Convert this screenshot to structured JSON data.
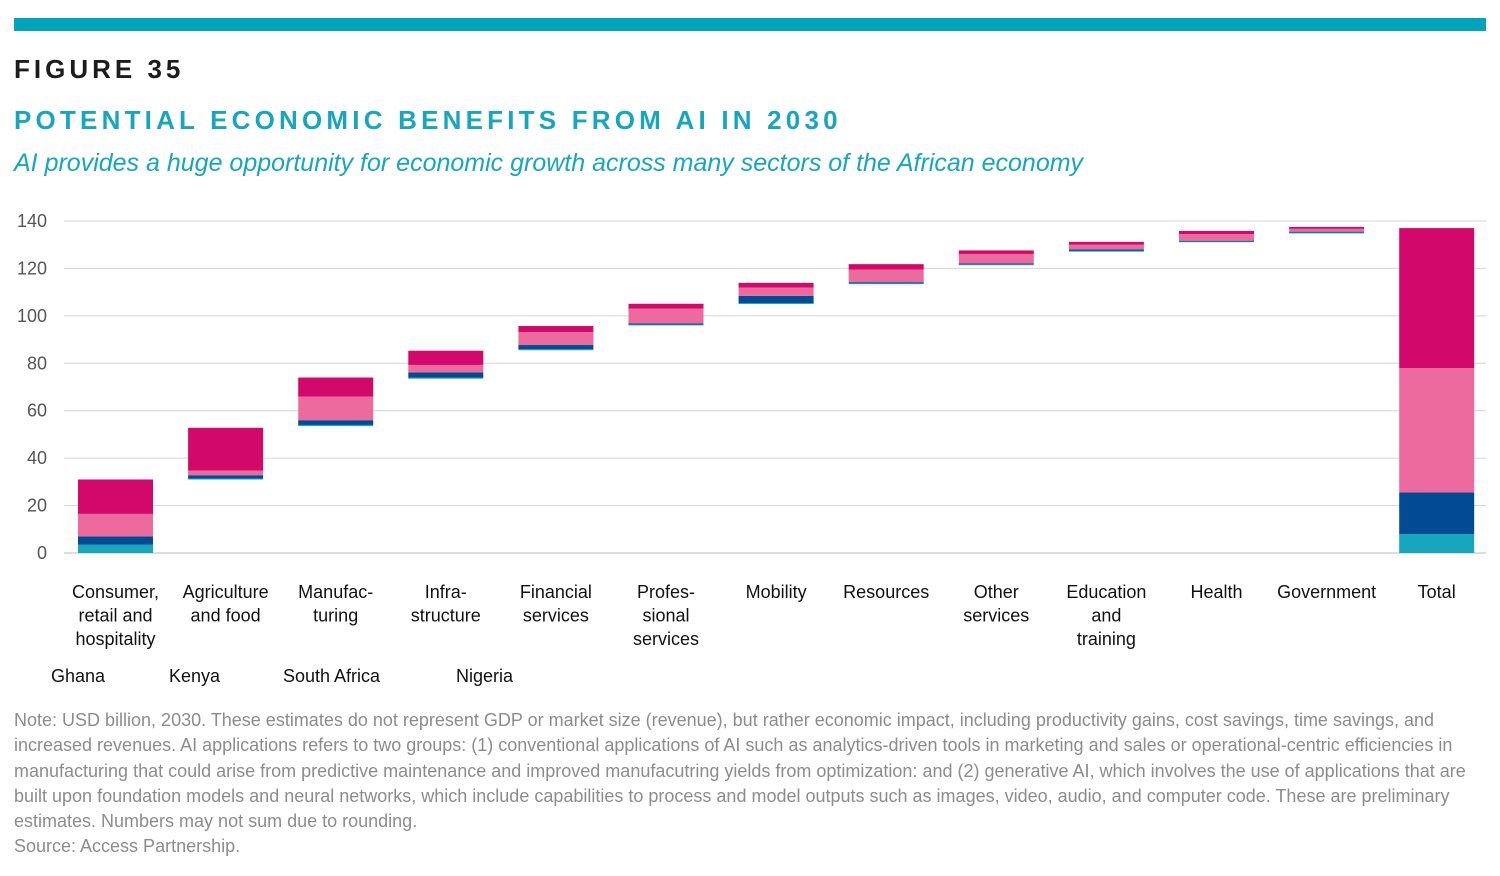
{
  "header": {
    "figure_label": "FIGURE 35",
    "title": "POTENTIAL ECONOMIC BENEFITS FROM AI IN 2030",
    "subtitle": "AI provides a huge opportunity for economic growth across many sectors of the African economy"
  },
  "chart_data": {
    "type": "bar",
    "subtype": "stacked-waterfall",
    "categories": [
      "Consumer, retail and hospitality",
      "Agriculture and food",
      "Manufac-turing",
      "Infra-structure",
      "Financial services",
      "Profes-sional services",
      "Mobility",
      "Resources",
      "Other services",
      "Education and training",
      "Health",
      "Government",
      "Total"
    ],
    "category_label_lines": [
      [
        "Consumer,",
        "retail and",
        "hospitality"
      ],
      [
        "Agriculture",
        "and food"
      ],
      [
        "Manufac-",
        "turing"
      ],
      [
        "Infra-",
        "structure"
      ],
      [
        "Financial",
        "services"
      ],
      [
        "Profes-",
        "sional",
        "services"
      ],
      [
        "Mobility"
      ],
      [
        "Resources"
      ],
      [
        "Other",
        "services"
      ],
      [
        "Education",
        "and",
        "training"
      ],
      [
        "Health"
      ],
      [
        "Government"
      ],
      [
        "Total"
      ]
    ],
    "bases": [
      0,
      31,
      53.5,
      73.5,
      85.5,
      96,
      105,
      113.5,
      121.5,
      127.3,
      131.3,
      135,
      0
    ],
    "series": [
      {
        "name": "Ghana",
        "color": "#16a6bd",
        "values": [
          3.5,
          0.4,
          0.5,
          0.4,
          0.4,
          0.3,
          0.4,
          0.2,
          0.2,
          0.1,
          0.1,
          0.1,
          8
        ]
      },
      {
        "name": "Kenya",
        "color": "#004b93",
        "values": [
          3.5,
          1.4,
          2,
          2.2,
          1.8,
          0.5,
          3,
          0.5,
          0.4,
          0.6,
          0.3,
          0.4,
          17.5
        ]
      },
      {
        "name": "South Africa",
        "color": "#ec6a9e",
        "values": [
          9.5,
          2,
          10,
          3.2,
          5.5,
          6.3,
          3.5,
          5.3,
          4,
          2,
          2.8,
          1.2,
          52.5
        ]
      },
      {
        "name": "Nigeria",
        "color": "#d2096a",
        "values": [
          14.5,
          18,
          8,
          6,
          2.5,
          2,
          2,
          2.3,
          1.5,
          1.2,
          1.3,
          0.8,
          59
        ]
      }
    ],
    "ylim": [
      0,
      140
    ],
    "yticks": [
      0,
      20,
      40,
      60,
      80,
      100,
      120,
      140
    ],
    "xlabel": "",
    "ylabel": "",
    "grid": true,
    "legend_position": "bottom-left"
  },
  "notes": {
    "note": "Note: USD billion, 2030. These estimates do not represent GDP or market size (revenue), but rather economic impact, including productivity gains, cost savings, time savings, and increased revenues. AI applications refers to two groups: (1) conventional applications of AI such as analytics-driven tools in marketing and sales or operational-centric efficiencies in manufacturing that could arise from predictive maintenance and improved manufacutring yields from optimization: and (2) generative AI, which involves the use of applications that are built upon foundation models and neural networks, which include capabilities to process and model outputs such as images, video, audio, and computer code. These are preliminary estimates. Numbers may not sum due to rounding.",
    "source": "Source: Access Partnership."
  }
}
